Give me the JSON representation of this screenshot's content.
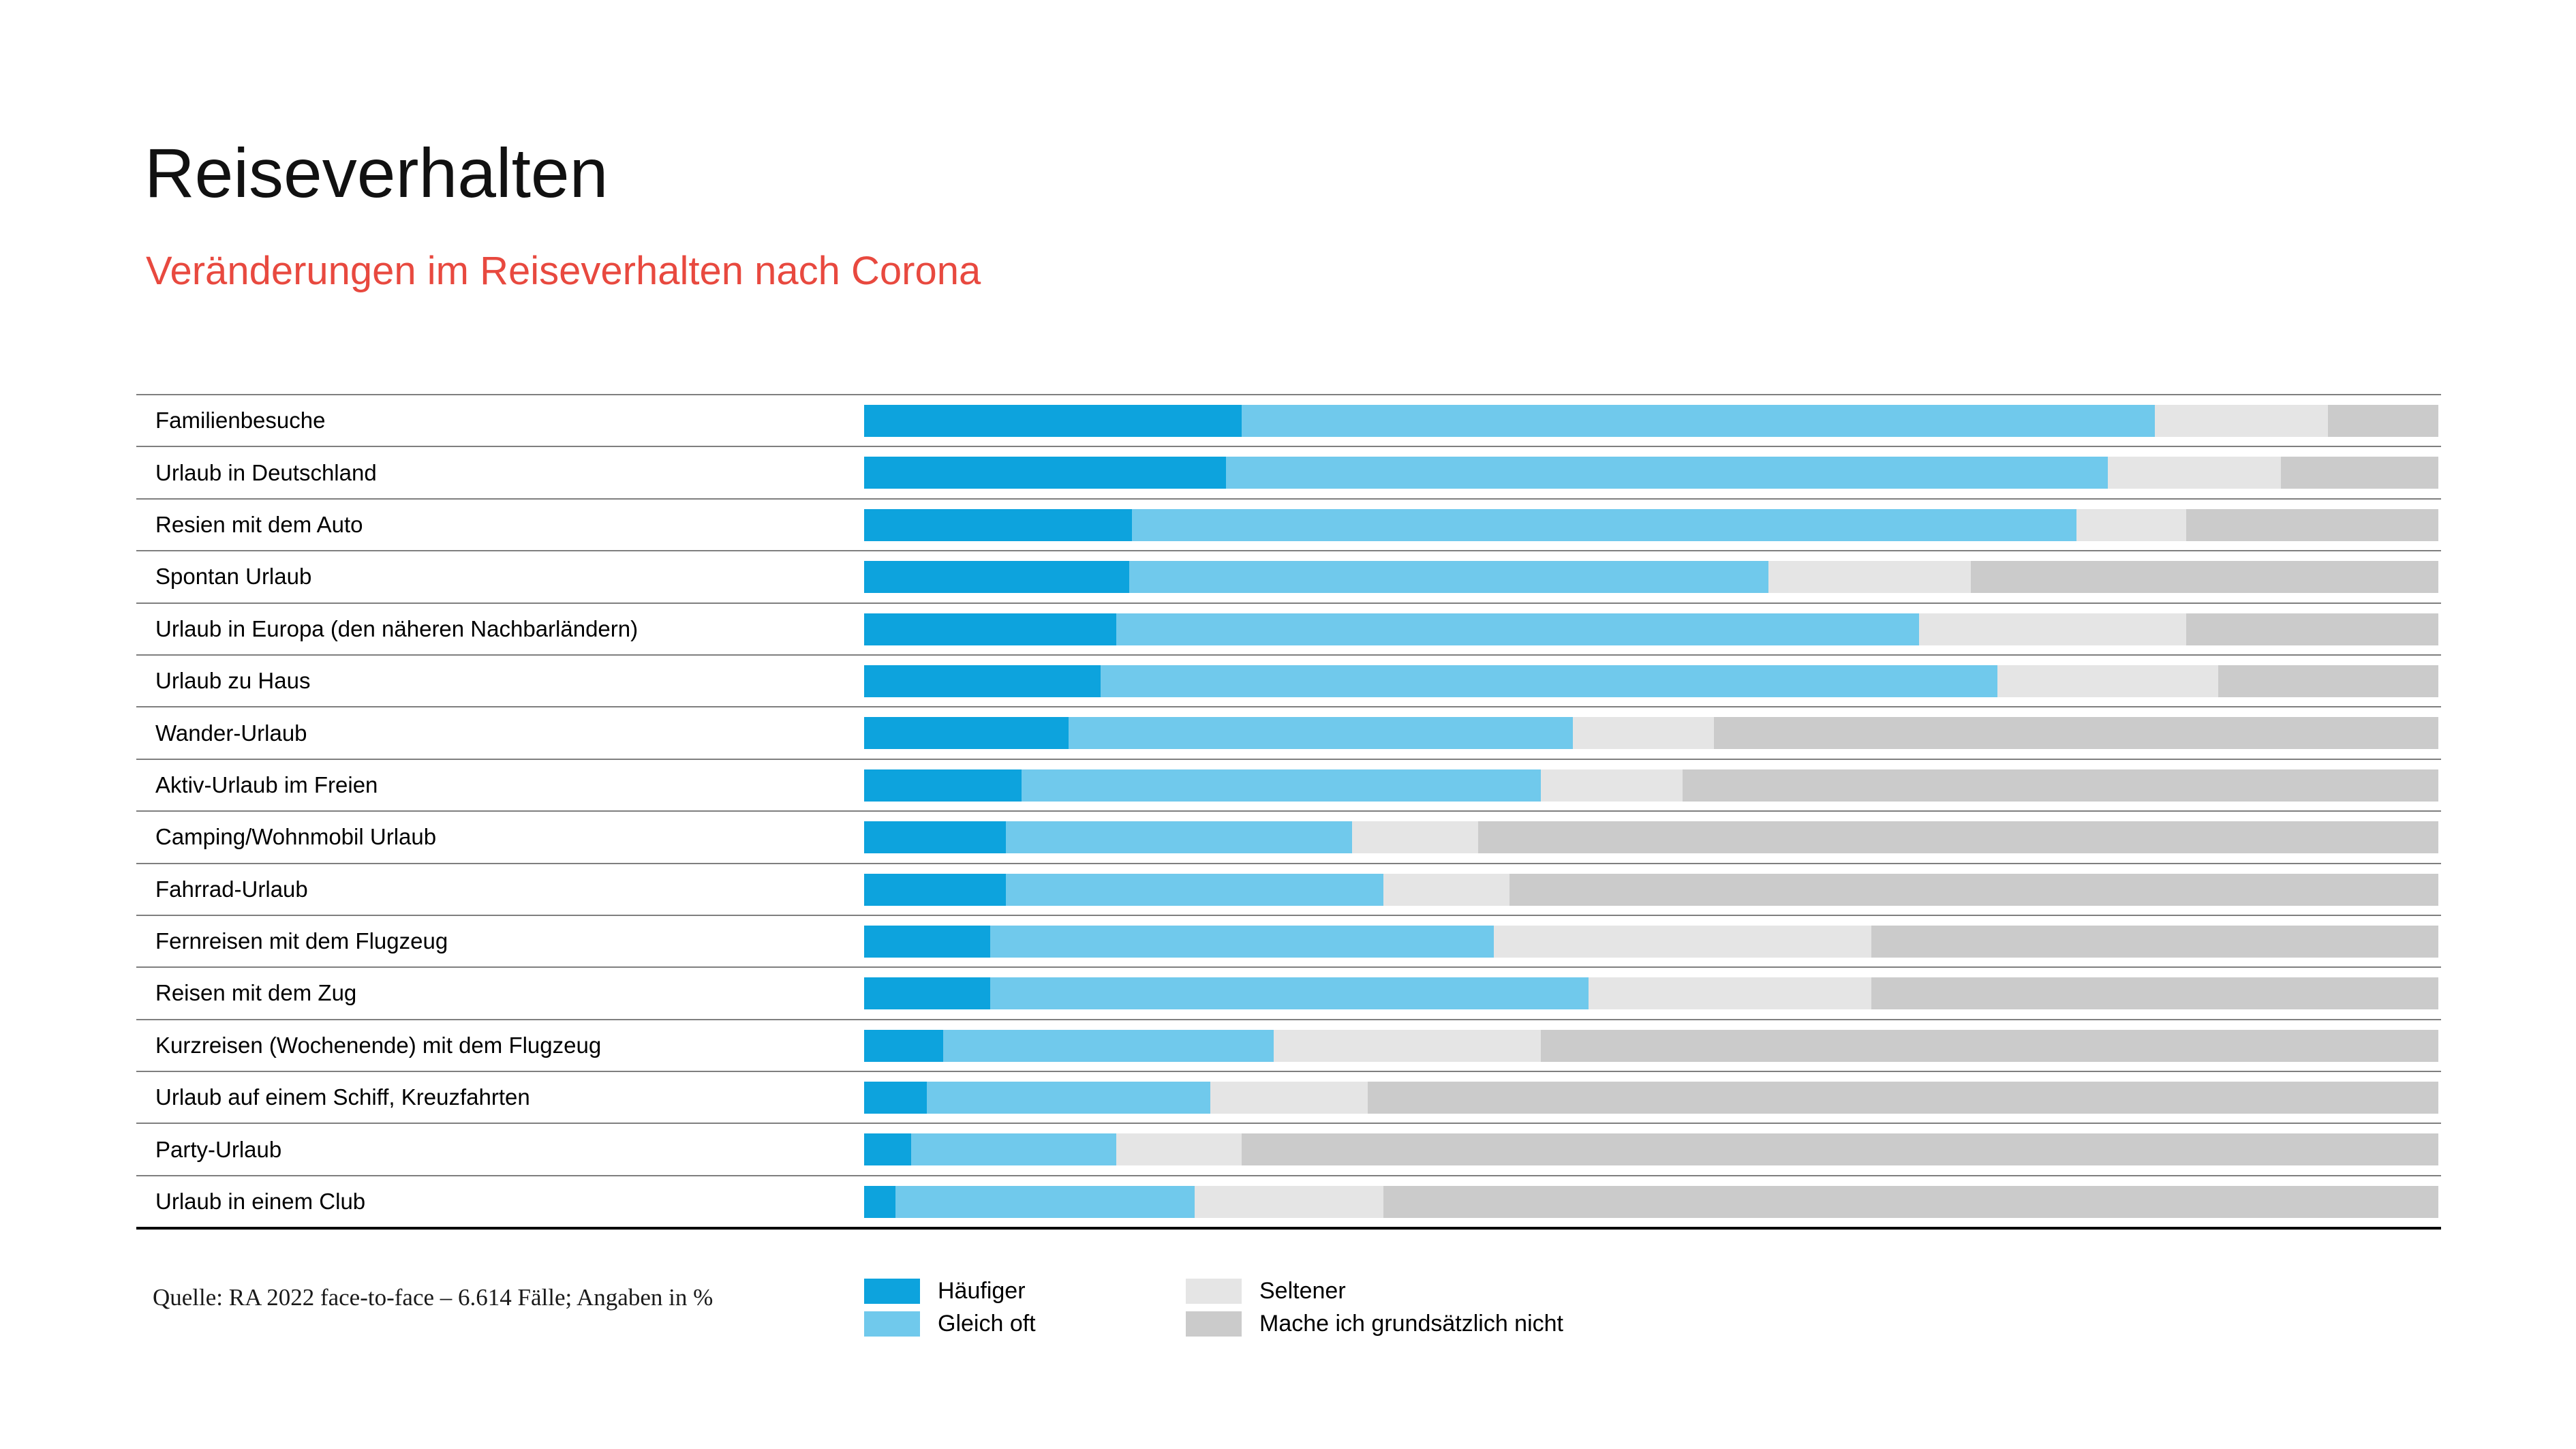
{
  "header": {
    "title": "Reiseverhalten",
    "subtitle": "Veränderungen im Reiseverhalten nach Corona",
    "title_color": "#111111",
    "subtitle_color": "#E8493F"
  },
  "footer": {
    "source": "Quelle: RA 2022 face-to-face – 6.614 Fälle; Angaben in %"
  },
  "chart_data": {
    "type": "bar",
    "orientation": "horizontal-stacked",
    "unit": "%",
    "title": "Reiseverhalten",
    "subtitle": "Veränderungen im Reiseverhalten nach Corona",
    "xlabel": "",
    "ylabel": "",
    "xlim": [
      0,
      100
    ],
    "grid": false,
    "legend_position": "bottom",
    "categories": [
      "Familienbesuche",
      "Urlaub in Deutschland",
      "Resien mit dem Auto",
      "Spontan Urlaub",
      "Urlaub in Europa (den näheren Nachbarländern)",
      "Urlaub zu Haus",
      "Wander-Urlaub",
      "Aktiv-Urlaub im Freien",
      "Camping/Wohnmobil Urlaub",
      "Fahrrad-Urlaub",
      "Fernreisen mit dem Flugzeug",
      "Reisen mit dem Zug",
      "Kurzreisen (Wochenende) mit dem Flugzeug",
      "Urlaub auf einem Schiff, Kreuzfahrten",
      "Party-Urlaub",
      "Urlaub in einem Club"
    ],
    "series": [
      {
        "name": "Häufiger",
        "color": "#0DA3DD",
        "values": [
          24,
          23,
          17,
          17,
          16,
          15,
          13,
          10,
          9,
          9,
          8,
          8,
          5,
          4,
          3,
          2
        ]
      },
      {
        "name": "Gleich oft",
        "color": "#70C9EC",
        "values": [
          58,
          56,
          60,
          41,
          51,
          57,
          32,
          33,
          22,
          24,
          32,
          38,
          21,
          18,
          13,
          19
        ]
      },
      {
        "name": "Seltener",
        "color": "#E5E5E5",
        "values": [
          11,
          11,
          7,
          13,
          17,
          14,
          9,
          9,
          8,
          8,
          24,
          18,
          17,
          10,
          8,
          12
        ]
      },
      {
        "name": "Mache ich grundsätzlich nicht",
        "color": "#CBCBCB",
        "values": [
          7,
          10,
          16,
          30,
          16,
          14,
          46,
          48,
          61,
          59,
          36,
          36,
          57,
          68,
          76,
          67
        ]
      }
    ]
  }
}
